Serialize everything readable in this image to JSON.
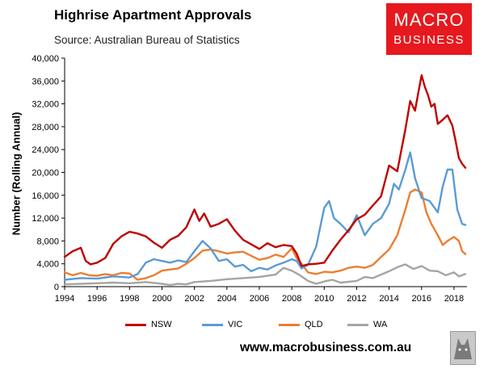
{
  "header": {
    "title": "Highrise Apartment Approvals",
    "subtitle": "Source: Australian Bureau of Statistics"
  },
  "logo": {
    "line1": "MACRO",
    "line2": "BUSINESS",
    "color": "#e6191e"
  },
  "footer": {
    "url": "www.macrobusiness.com.au",
    "icon": "wolf-logo-icon"
  },
  "chart_data": {
    "type": "line",
    "title": "Highrise Apartment Approvals",
    "xlabel": "",
    "ylabel": "Number (Rolling Annual)",
    "xlim": [
      1994,
      2018.8
    ],
    "ylim": [
      0,
      40000
    ],
    "grid": false,
    "legend": "bottom",
    "x_ticks": [
      1994,
      1996,
      1998,
      2000,
      2002,
      2004,
      2006,
      2008,
      2010,
      2012,
      2014,
      2016,
      2018
    ],
    "x_tick_labels": [
      "1994",
      "1996",
      "1998",
      "2000",
      "2002",
      "2004",
      "2006",
      "2008",
      "2010",
      "2012",
      "2014",
      "2016",
      "2018"
    ],
    "y_ticks": [
      0,
      4000,
      8000,
      12000,
      16000,
      20000,
      24000,
      28000,
      32000,
      36000,
      40000
    ],
    "y_tick_labels": [
      "0",
      "4,000",
      "8,000",
      "12,000",
      "16,000",
      "20,000",
      "24,000",
      "28,000",
      "32,000",
      "36,000",
      "40,000"
    ],
    "series": [
      {
        "name": "NSW",
        "color": "#c00000",
        "x": [
          1994,
          1994.5,
          1995,
          1995.3,
          1995.6,
          1996,
          1996.5,
          1997,
          1997.5,
          1998,
          1998.5,
          1999,
          1999.5,
          2000,
          2000.5,
          2001,
          2001.5,
          2002,
          2002.3,
          2002.6,
          2003,
          2003.5,
          2004,
          2004.5,
          2005,
          2005.5,
          2006,
          2006.5,
          2007,
          2007.5,
          2008,
          2008.3,
          2008.6,
          2009,
          2009.5,
          2010,
          2010.5,
          2011,
          2011.5,
          2012,
          2012.5,
          2013,
          2013.5,
          2014,
          2014.5,
          2015,
          2015.3,
          2015.6,
          2015.8,
          2016,
          2016.2,
          2016.4,
          2016.6,
          2016.8,
          2017,
          2017.3,
          2017.6,
          2017.9,
          2018.1,
          2018.3,
          2018.5,
          2018.7
        ],
        "values": [
          5200,
          6200,
          6800,
          4500,
          3900,
          4200,
          5000,
          7500,
          8800,
          9600,
          9300,
          8800,
          7700,
          6800,
          8200,
          8900,
          10400,
          13500,
          11500,
          12800,
          10500,
          11000,
          11800,
          9800,
          8200,
          7400,
          6600,
          7600,
          6900,
          7300,
          7100,
          5800,
          3600,
          3900,
          4000,
          4200,
          6300,
          8200,
          9900,
          11800,
          12600,
          14200,
          15800,
          21200,
          20200,
          27500,
          32500,
          30800,
          34000,
          37000,
          35000,
          33500,
          31500,
          32000,
          28500,
          29200,
          30000,
          28200,
          25500,
          22500,
          21500,
          20800
        ]
      },
      {
        "name": "VIC",
        "color": "#5b9bd5",
        "x": [
          1994,
          1995,
          1996,
          1997,
          1998,
          1998.5,
          1999,
          1999.5,
          2000,
          2000.5,
          2001,
          2001.5,
          2002,
          2002.5,
          2003,
          2003.5,
          2004,
          2004.5,
          2005,
          2005.5,
          2006,
          2006.5,
          2007,
          2007.5,
          2008,
          2008.3,
          2008.6,
          2009,
          2009.5,
          2010,
          2010.3,
          2010.6,
          2011,
          2011.5,
          2012,
          2012.5,
          2013,
          2013.5,
          2014,
          2014.3,
          2014.6,
          2015,
          2015.3,
          2015.6,
          2016,
          2016.5,
          2017,
          2017.3,
          2017.6,
          2017.9,
          2018.2,
          2018.5,
          2018.7
        ],
        "values": [
          1200,
          1500,
          1400,
          1800,
          1600,
          2200,
          4200,
          4800,
          4500,
          4200,
          4600,
          4300,
          6200,
          8000,
          6700,
          4500,
          4800,
          3500,
          3800,
          2700,
          3300,
          3000,
          3700,
          4200,
          4800,
          4500,
          3200,
          3800,
          7000,
          13800,
          15000,
          12000,
          11000,
          9500,
          12500,
          9000,
          11000,
          12000,
          14500,
          18000,
          17000,
          20500,
          23500,
          19000,
          15500,
          15000,
          13000,
          17500,
          20500,
          20500,
          13500,
          11000,
          10800
        ]
      },
      {
        "name": "QLD",
        "color": "#ed7d31",
        "x": [
          1994,
          1994.5,
          1995,
          1995.5,
          1996,
          1996.5,
          1997,
          1997.5,
          1998,
          1998.5,
          1999,
          1999.5,
          2000,
          2000.5,
          2001,
          2001.5,
          2002,
          2002.5,
          2003,
          2003.5,
          2004,
          2004.5,
          2005,
          2005.5,
          2006,
          2006.5,
          2007,
          2007.5,
          2008,
          2008.3,
          2008.6,
          2009,
          2009.5,
          2010,
          2010.5,
          2011,
          2011.5,
          2012,
          2012.5,
          2013,
          2013.5,
          2014,
          2014.5,
          2015,
          2015.3,
          2015.6,
          2016,
          2016.3,
          2016.6,
          2017,
          2017.3,
          2017.6,
          2018,
          2018.3,
          2018.5,
          2018.7
        ],
        "values": [
          2500,
          2000,
          2400,
          2000,
          1900,
          2200,
          2000,
          2400,
          2300,
          1200,
          1500,
          2000,
          2800,
          3000,
          3200,
          4000,
          5000,
          6300,
          6500,
          6200,
          5800,
          6000,
          6100,
          5400,
          4700,
          5000,
          5600,
          5200,
          6700,
          5000,
          4000,
          2500,
          2200,
          2600,
          2500,
          2800,
          3300,
          3500,
          3300,
          3800,
          5200,
          6500,
          9000,
          13500,
          16500,
          17000,
          16500,
          13000,
          11000,
          9000,
          7300,
          8000,
          8700,
          8000,
          6200,
          5700
        ]
      },
      {
        "name": "WA",
        "color": "#a5a5a5",
        "x": [
          1994,
          1995,
          1996,
          1997,
          1998,
          1999,
          2000,
          2000.5,
          2001,
          2001.5,
          2002,
          2003,
          2004,
          2005,
          2006,
          2007,
          2007.5,
          2008,
          2008.5,
          2009,
          2009.5,
          2010,
          2010.5,
          2011,
          2012,
          2012.5,
          2013,
          2014,
          2014.5,
          2015,
          2015.5,
          2016,
          2016.5,
          2017,
          2017.5,
          2018,
          2018.3,
          2018.7
        ],
        "values": [
          400,
          500,
          600,
          700,
          600,
          800,
          500,
          300,
          500,
          400,
          800,
          1000,
          1300,
          1500,
          1700,
          2100,
          3300,
          2800,
          2000,
          1000,
          500,
          900,
          1200,
          700,
          1000,
          1700,
          1500,
          2700,
          3400,
          3900,
          3100,
          3600,
          2800,
          2700,
          2000,
          2500,
          1800,
          2200
        ]
      }
    ]
  }
}
